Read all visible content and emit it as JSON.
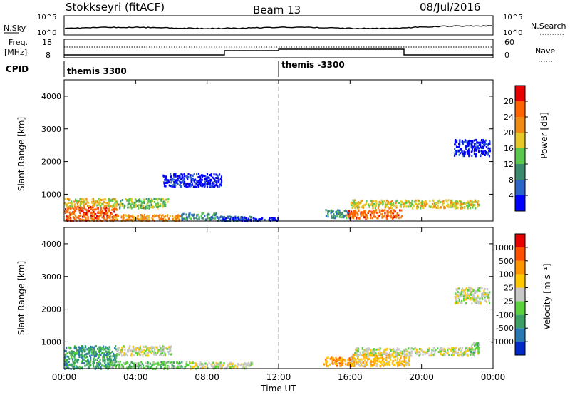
{
  "header": {
    "station": "Stokkseyri (fitACF)",
    "beam": "Beam 13",
    "date": "08/Jul/2016"
  },
  "labels": {
    "nsky": "N.Sky",
    "nsearch": "N.Search",
    "freq_line1": "Freq.",
    "freq_line2": "[MHz]",
    "nave": "Nave",
    "cpid": "CPID",
    "noise_tick_top": "10^5",
    "noise_tick_bottom": "10^0",
    "freq_tick_top": "18",
    "freq_tick_bottom": "8",
    "nave_tick_top": "60",
    "nave_tick_bottom": "0",
    "cpid_left": "themis 3300",
    "cpid_right": "themis -3300",
    "power_colorbar_label": "Power [dB]",
    "velocity_colorbar_label": "Velocity [m s⁻¹]",
    "ylabel": "Slant Range [km]",
    "xlabel": "Time UT"
  },
  "chart_data": [
    {
      "type": "heatmap",
      "panel": "power",
      "xlabel": "Time UT",
      "ylabel": "Slant Range [km]",
      "xlim": [
        0,
        24
      ],
      "ylim": [
        180,
        4500
      ],
      "x_ticks": [
        0,
        4,
        8,
        12,
        16,
        20,
        24
      ],
      "x_tick_labels": [
        "00:00",
        "04:00",
        "08:00",
        "12:00",
        "16:00",
        "20:00",
        "00:00"
      ],
      "y_ticks": [
        1000,
        2000,
        3000,
        4000
      ],
      "y_tick_labels": [
        "1000",
        "2000",
        "3000",
        "4000"
      ],
      "colorbar": {
        "label": "Power [dB]",
        "ticks": [
          "4",
          "8",
          "12",
          "16",
          "20",
          "24",
          "28"
        ],
        "colors": [
          "#0000ff",
          "#2c64c8",
          "#3c8a6e",
          "#5ac84e",
          "#e6c828",
          "#f08c14",
          "#ff6400",
          "#e60000"
        ]
      },
      "echo_regions": [
        {
          "t0": 0.0,
          "t1": 2.9,
          "r0": 200,
          "r1": 650,
          "level": 6
        },
        {
          "t0": 0.0,
          "t1": 3.0,
          "r0": 650,
          "r1": 900,
          "level": 4
        },
        {
          "t0": 3.0,
          "t1": 5.8,
          "r0": 600,
          "r1": 900,
          "level": 3
        },
        {
          "t0": 2.5,
          "t1": 6.5,
          "r0": 200,
          "r1": 400,
          "level": 5
        },
        {
          "t0": 6.5,
          "t1": 8.5,
          "r0": 250,
          "r1": 450,
          "level": 2
        },
        {
          "t0": 8.5,
          "t1": 10.5,
          "r0": 200,
          "r1": 350,
          "level": 1
        },
        {
          "t0": 14.6,
          "t1": 16.0,
          "r0": 300,
          "r1": 550,
          "level": 2
        },
        {
          "t0": 15.8,
          "t1": 18.9,
          "r0": 280,
          "r1": 550,
          "level": 6
        },
        {
          "t0": 16.0,
          "t1": 23.2,
          "r0": 600,
          "r1": 850,
          "level": 4
        },
        {
          "t0": 21.8,
          "t1": 23.8,
          "r0": 2200,
          "r1": 2700,
          "level": 0
        },
        {
          "t0": 5.5,
          "t1": 8.8,
          "r0": 1250,
          "r1": 1650,
          "level": 0
        },
        {
          "t0": 8.8,
          "t1": 12.0,
          "r0": 200,
          "r1": 320,
          "level": 0
        }
      ]
    },
    {
      "type": "heatmap",
      "panel": "velocity",
      "xlabel": "Time UT",
      "ylabel": "Slant Range [km]",
      "xlim": [
        0,
        24
      ],
      "ylim": [
        180,
        4500
      ],
      "x_ticks": [
        0,
        4,
        8,
        12,
        16,
        20,
        24
      ],
      "x_tick_labels": [
        "00:00",
        "04:00",
        "08:00",
        "12:00",
        "16:00",
        "20:00",
        "00:00"
      ],
      "y_ticks": [
        1000,
        2000,
        3000,
        4000
      ],
      "y_tick_labels": [
        "1000",
        "2000",
        "3000",
        "4000"
      ],
      "colorbar": {
        "label": "Velocity [m s⁻¹]",
        "ticks": [
          "1000",
          "500",
          "100",
          "25",
          "-25",
          "-100",
          "-500",
          "-1000"
        ],
        "colors": [
          "#0028c8",
          "#2878b4",
          "#3ca064",
          "#5ad23c",
          "#c8c8c8",
          "#ffc800",
          "#ff9600",
          "#ff5000",
          "#e60000"
        ]
      },
      "echo_regions": [
        {
          "t0": 0.0,
          "t1": 2.9,
          "r0": 200,
          "r1": 900,
          "level": 2
        },
        {
          "t0": 2.9,
          "t1": 6.0,
          "r0": 600,
          "r1": 900,
          "level": 4
        },
        {
          "t0": 2.5,
          "t1": 7.0,
          "r0": 200,
          "r1": 420,
          "level": 3
        },
        {
          "t0": 7.0,
          "t1": 10.5,
          "r0": 200,
          "r1": 400,
          "level": 4
        },
        {
          "t0": 14.5,
          "t1": 16.2,
          "r0": 280,
          "r1": 550,
          "level": 6
        },
        {
          "t0": 16.0,
          "t1": 19.3,
          "r0": 280,
          "r1": 650,
          "level": 5
        },
        {
          "t0": 16.2,
          "t1": 23.2,
          "r0": 600,
          "r1": 850,
          "level": 4
        },
        {
          "t0": 21.8,
          "t1": 23.8,
          "r0": 2200,
          "r1": 2700,
          "level": 4
        },
        {
          "t0": 22.6,
          "t1": 23.2,
          "r0": 700,
          "r1": 1000,
          "level": 3
        }
      ]
    }
  ]
}
